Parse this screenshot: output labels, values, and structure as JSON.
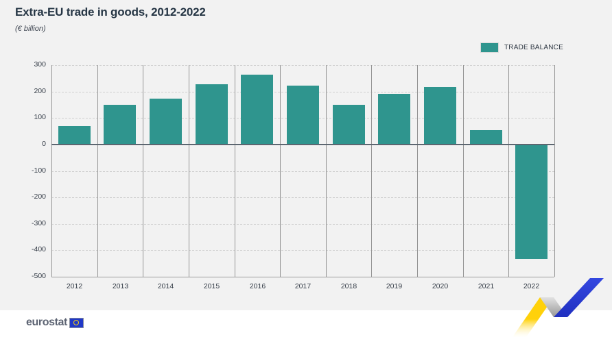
{
  "header": {
    "title": "Extra-EU trade in goods, 2012-2022",
    "subtitle": "(€ billion)"
  },
  "legend": {
    "label": "TRADE BALANCE",
    "color": "#2f958e"
  },
  "chart_data": {
    "type": "bar",
    "title": "Extra-EU trade in goods, 2012-2022",
    "unit": "(€ billion)",
    "categories": [
      "2012",
      "2013",
      "2014",
      "2015",
      "2016",
      "2017",
      "2018",
      "2019",
      "2020",
      "2021",
      "2022"
    ],
    "series": [
      {
        "name": "TRADE BALANCE",
        "color": "#2f958e",
        "values": [
          70,
          151,
          172,
          228,
          265,
          222,
          149,
          191,
          217,
          55,
          -432
        ]
      }
    ],
    "ylim": [
      -500,
      300
    ],
    "yticks": [
      300,
      200,
      100,
      0,
      -100,
      -200,
      -300,
      -400,
      -500
    ],
    "grid": {
      "horizontal": "dashed",
      "vertical": "solid-column-separators"
    },
    "legend_position": "top-right"
  },
  "footer": {
    "brand": "eurostat"
  },
  "colors": {
    "bar_teal": "#2f958e",
    "title_navy": "#263645",
    "page_background": "#f2f2f2",
    "footer_background": "#ffffff",
    "ribbon_yellow": "#ffd10a",
    "ribbon_gray": "#bcbcbc",
    "ribbon_blue": "#2c3fd0",
    "eu_flag_blue": "#2038c8"
  }
}
